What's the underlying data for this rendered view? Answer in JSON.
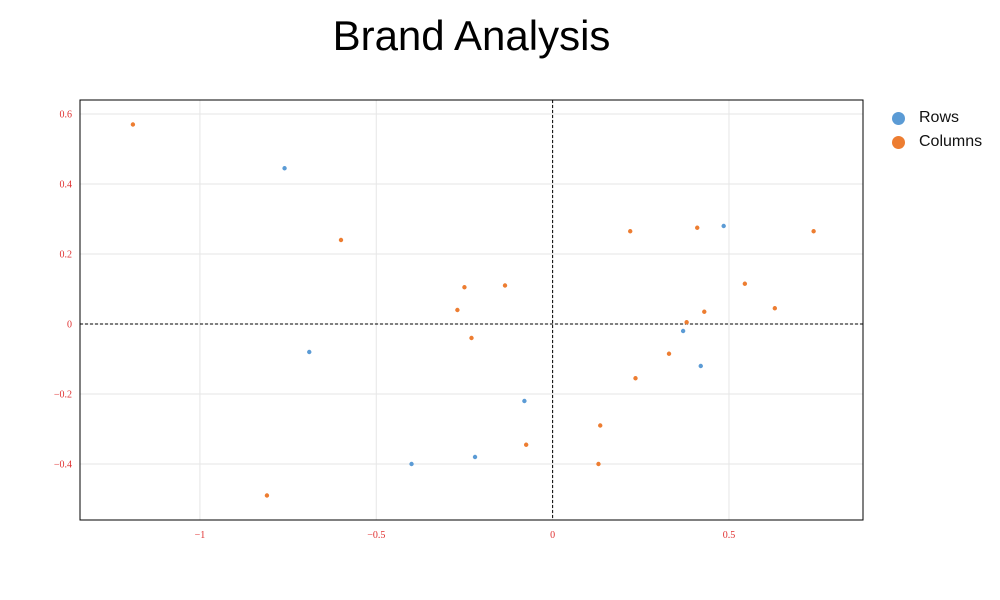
{
  "title": "Brand Analysis",
  "legend": {
    "rows_label": "Rows",
    "columns_label": "Columns"
  },
  "colors": {
    "rows": "#5b9bd5",
    "columns": "#ed7d31",
    "tick_label": "#e03030",
    "grid": "#e6e6e6"
  },
  "chart_data": {
    "type": "scatter",
    "title": "Brand Analysis",
    "xlim": [
      -1.34,
      0.88
    ],
    "ylim": [
      -0.56,
      0.64
    ],
    "x_ticks": [
      -1,
      -0.5,
      0,
      0.5
    ],
    "x_tick_labels": [
      "−1",
      "−0.5",
      "0",
      "0.5"
    ],
    "y_ticks": [
      0.6,
      0.4,
      0.2,
      0,
      -0.2,
      -0.4
    ],
    "y_tick_labels": [
      "0.6",
      "0.4",
      "0.2",
      "0",
      "−0.2",
      "−0.4"
    ],
    "grid": true,
    "reference_lines": {
      "x": 0,
      "y": 0,
      "style": "dashed"
    },
    "legend_position": "right",
    "series": [
      {
        "name": "Rows",
        "points": [
          [
            -0.76,
            0.445
          ],
          [
            -0.69,
            -0.08
          ],
          [
            -0.4,
            -0.4
          ],
          [
            -0.22,
            -0.38
          ],
          [
            -0.08,
            -0.22
          ],
          [
            0.37,
            -0.02
          ],
          [
            0.42,
            -0.12
          ],
          [
            0.485,
            0.28
          ]
        ]
      },
      {
        "name": "Columns",
        "points": [
          [
            -1.19,
            0.57
          ],
          [
            -0.6,
            0.24
          ],
          [
            -0.81,
            -0.49
          ],
          [
            -0.25,
            0.105
          ],
          [
            -0.135,
            0.11
          ],
          [
            -0.27,
            0.04
          ],
          [
            -0.23,
            -0.04
          ],
          [
            -0.075,
            -0.345
          ],
          [
            0.13,
            -0.4
          ],
          [
            0.135,
            -0.29
          ],
          [
            0.235,
            -0.155
          ],
          [
            0.22,
            0.265
          ],
          [
            0.33,
            -0.085
          ],
          [
            0.38,
            0.005
          ],
          [
            0.41,
            0.275
          ],
          [
            0.43,
            0.035
          ],
          [
            0.545,
            0.115
          ],
          [
            0.63,
            0.045
          ],
          [
            0.74,
            0.265
          ]
        ]
      }
    ]
  }
}
